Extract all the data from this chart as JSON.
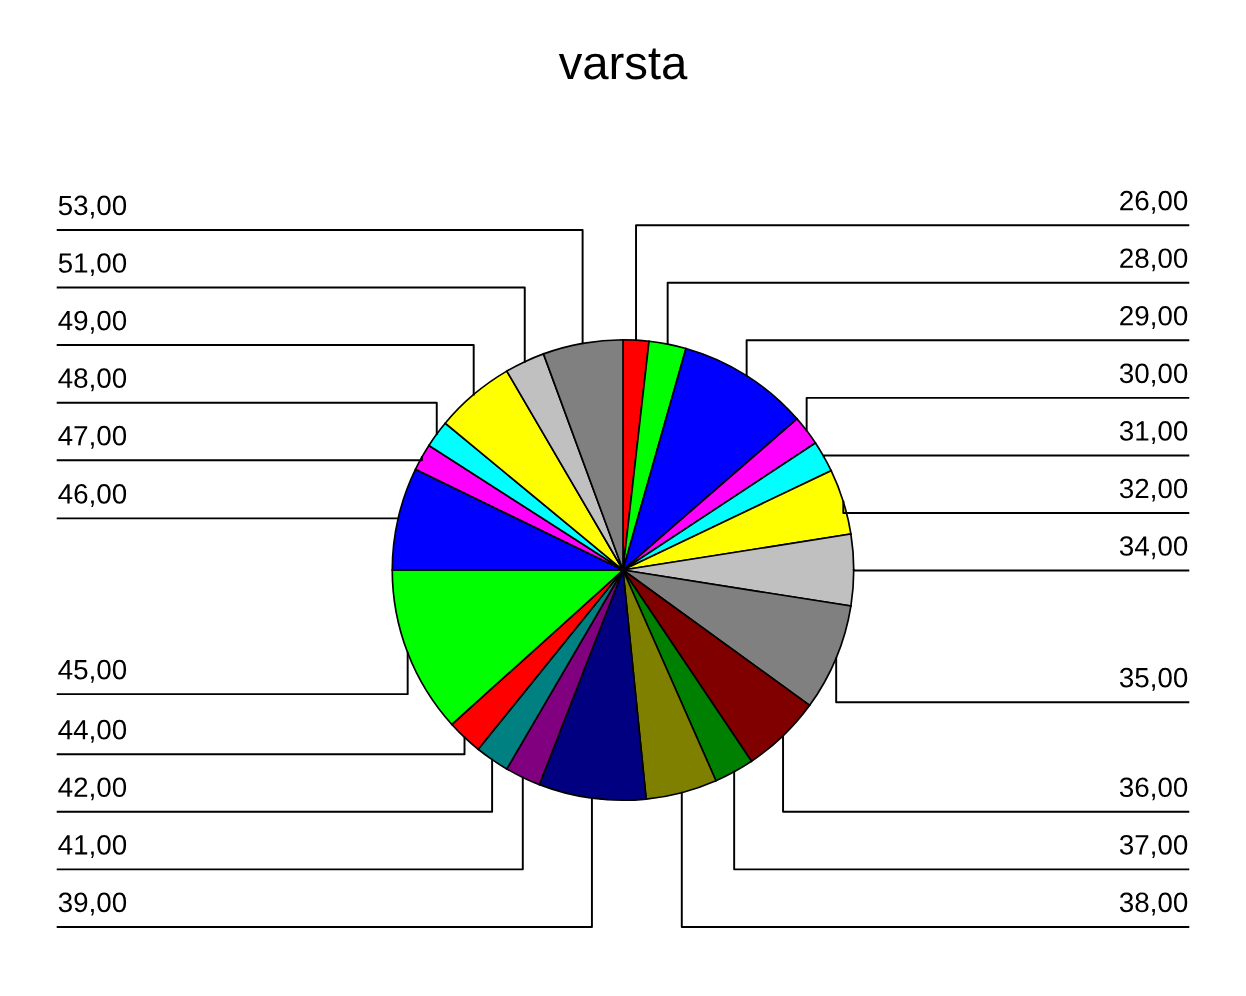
{
  "chart_data": {
    "type": "pie",
    "title": "varsta",
    "categories": [
      "26,00",
      "28,00",
      "29,00",
      "30,00",
      "31,00",
      "32,00",
      "34,00",
      "35,00",
      "36,00",
      "37,00",
      "38,00",
      "39,00",
      "41,00",
      "42,00",
      "44,00",
      "45,00",
      "46,00",
      "47,00",
      "48,00",
      "49,00",
      "51,00",
      "53,00"
    ],
    "values": [
      1.8,
      2.6,
      9.2,
      2.1,
      2.2,
      4.6,
      5.0,
      7.5,
      5.6,
      2.8,
      5.0,
      7.5,
      2.5,
      2.4,
      2.5,
      11.7,
      7.2,
      1.9,
      1.9,
      5.6,
      2.8,
      5.6
    ],
    "colors": [
      "#ff0000",
      "#00ff00",
      "#0000ff",
      "#ff00ff",
      "#00ffff",
      "#ffff00",
      "#c0c0c0",
      "#808080",
      "#800000",
      "#008000",
      "#808000",
      "#000080",
      "#800080",
      "#008080",
      "#ff0000",
      "#00ff00",
      "#0000ff",
      "#ff00ff",
      "#00ffff",
      "#ffff00",
      "#c0c0c0",
      "#808080"
    ]
  }
}
